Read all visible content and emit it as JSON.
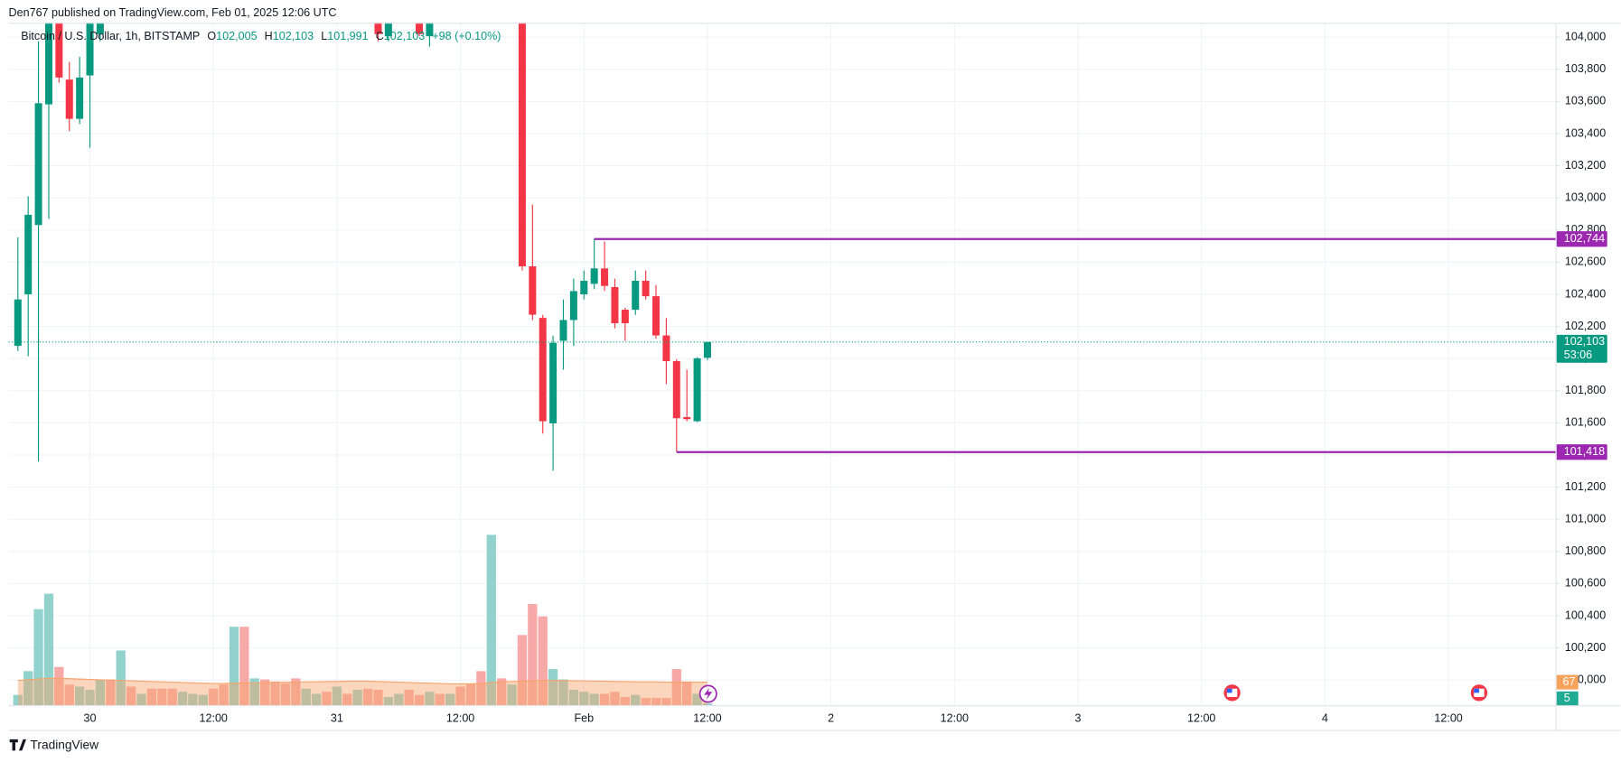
{
  "header": "Den767 published on TradingView.com, Feb 01, 2025 12:06 UTC",
  "footer": "TradingView",
  "chart_data": {
    "type": "candlestick",
    "legend": {
      "symbol": "Bitcoin / U.S. Dollar, 1h, BITSTAMP",
      "fields": [
        {
          "key": "O",
          "value": "102,005"
        },
        {
          "key": "H",
          "value": "102,103"
        },
        {
          "key": "L",
          "value": "101,991"
        },
        {
          "key": "C",
          "value": "102,103"
        }
      ],
      "change": "+98 (+0.10%)"
    },
    "up_color": "#089981",
    "down_color": "#f23645",
    "x": [
      0,
      1,
      2,
      3,
      4,
      5,
      6,
      7,
      8,
      9,
      10,
      11,
      12,
      13,
      14,
      15,
      16,
      17,
      18,
      19,
      20,
      21,
      22,
      23,
      24,
      25,
      26,
      27,
      28,
      29,
      30,
      31,
      32,
      33,
      34,
      35,
      36,
      37,
      38,
      39,
      40,
      41,
      42,
      43,
      44,
      45,
      46,
      47,
      48,
      49,
      50,
      51,
      52,
      53,
      54,
      55,
      56,
      57,
      58,
      59,
      60,
      61,
      62,
      63,
      64,
      65,
      66,
      67
    ],
    "open": [
      102079,
      102400,
      102831,
      103582,
      104295,
      103736,
      103492,
      103762,
      104019,
      null,
      null,
      null,
      null,
      null,
      null,
      null,
      null,
      null,
      null,
      null,
      null,
      null,
      null,
      null,
      null,
      null,
      null,
      null,
      null,
      null,
      null,
      null,
      null,
      null,
      null,
      104295,
      104006,
      null,
      null,
      104295,
      104006,
      null,
      null,
      null,
      null,
      null,
      null,
      null,
      null,
      104359,
      102574,
      102253,
      101597,
      102111,
      102240,
      102400,
      102465,
      102561,
      102445,
      102304,
      102304,
      102484,
      102388,
      102144,
      101984,
      101636,
      101610,
      102005
    ],
    "high": [
      102754,
      103010,
      103974,
      104488,
      104424,
      103846,
      103878,
      104231,
      104424,
      null,
      null,
      null,
      null,
      null,
      null,
      null,
      null,
      null,
      null,
      null,
      null,
      null,
      null,
      null,
      null,
      null,
      null,
      null,
      null,
      null,
      null,
      null,
      null,
      null,
      null,
      104359,
      104359,
      null,
      null,
      104359,
      104359,
      null,
      null,
      null,
      null,
      null,
      null,
      null,
      null,
      104424,
      102959,
      102272,
      102143,
      102368,
      102497,
      102548,
      102744,
      102730,
      102497,
      102317,
      102548,
      102548,
      102458,
      102252,
      101996,
      101931,
      102008,
      102103
    ],
    "low": [
      102047,
      102015,
      101360,
      102869,
      103717,
      103415,
      103460,
      103312,
      103974,
      null,
      null,
      null,
      null,
      null,
      null,
      null,
      null,
      null,
      null,
      null,
      null,
      null,
      null,
      null,
      null,
      null,
      null,
      null,
      null,
      null,
      null,
      null,
      null,
      null,
      null,
      103974,
      103974,
      null,
      null,
      104006,
      103942,
      null,
      null,
      null,
      null,
      null,
      null,
      null,
      null,
      102548,
      102240,
      101533,
      101302,
      101931,
      102079,
      102368,
      102432,
      102420,
      102188,
      102111,
      102272,
      102368,
      102124,
      101841,
      101418,
      101610,
      101604,
      101991
    ],
    "close": [
      102368,
      102895,
      103589,
      104359,
      103749,
      103492,
      103749,
      104103,
      104295,
      null,
      null,
      null,
      null,
      null,
      null,
      null,
      null,
      null,
      null,
      null,
      null,
      null,
      null,
      null,
      null,
      null,
      null,
      null,
      null,
      null,
      null,
      null,
      null,
      null,
      null,
      104019,
      104263,
      null,
      null,
      104019,
      104167,
      null,
      null,
      null,
      null,
      null,
      null,
      null,
      null,
      102574,
      102273,
      101610,
      102098,
      102240,
      102420,
      102484,
      102561,
      102452,
      102220,
      102220,
      102484,
      102388,
      102144,
      101984,
      101629,
      101623,
      102002,
      102103
    ],
    "volume": [
      30,
      99,
      279,
      324,
      111,
      60,
      54,
      45,
      75,
      75,
      159,
      54,
      33,
      48,
      48,
      48,
      39,
      33,
      30,
      48,
      60,
      228,
      228,
      78,
      75,
      69,
      63,
      78,
      48,
      33,
      39,
      54,
      33,
      45,
      48,
      45,
      24,
      33,
      45,
      30,
      39,
      33,
      33,
      54,
      63,
      99,
      495,
      78,
      60,
      204,
      294,
      258,
      105,
      75,
      45,
      39,
      33,
      33,
      39,
      24,
      30,
      21,
      21,
      21,
      105,
      69,
      33,
      5
    ],
    "volume_colors": [
      "#92d2cc",
      "#92d2cc",
      "#92d2cc",
      "#92d2cc",
      "#f7a9a7",
      "#f7a9a7",
      "#92d2cc",
      "#92d2cc",
      "#92d2cc",
      "#f7a9a7",
      "#92d2cc",
      "#f7a9a7",
      "#92d2cc",
      "#f7a9a7",
      "#f7a9a7",
      "#f7a9a7",
      "#92d2cc",
      "#92d2cc",
      "#92d2cc",
      "#f7a9a7",
      "#f7a9a7",
      "#92d2cc",
      "#f7a9a7",
      "#92d2cc",
      "#f7a9a7",
      "#f7a9a7",
      "#f7a9a7",
      "#f7a9a7",
      "#92d2cc",
      "#92d2cc",
      "#f7a9a7",
      "#92d2cc",
      "#f7a9a7",
      "#92d2cc",
      "#f7a9a7",
      "#f7a9a7",
      "#92d2cc",
      "#92d2cc",
      "#f7a9a7",
      "#f7a9a7",
      "#92d2cc",
      "#f7a9a7",
      "#92d2cc",
      "#f7a9a7",
      "#f7a9a7",
      "#f7a9a7",
      "#92d2cc",
      "#f7a9a7",
      "#92d2cc",
      "#f7a9a7",
      "#f7a9a7",
      "#f7a9a7",
      "#92d2cc",
      "#92d2cc",
      "#92d2cc",
      "#92d2cc",
      "#92d2cc",
      "#f7a9a7",
      "#f7a9a7",
      "#f7a9a7",
      "#92d2cc",
      "#f7a9a7",
      "#f7a9a7",
      "#f7a9a7",
      "#f7a9a7",
      "#f7a9a7",
      "#92d2cc",
      "#92d2cc"
    ],
    "volume_ma": [
      72,
      74,
      76,
      78,
      78,
      77,
      76,
      75,
      74,
      73,
      72,
      71,
      70,
      69,
      68,
      67,
      66,
      65,
      64,
      63,
      63,
      64,
      65,
      65,
      66,
      66,
      67,
      67,
      68,
      68,
      69,
      69,
      70,
      70,
      70,
      69,
      68,
      67,
      66,
      65,
      64,
      63,
      62,
      62,
      62,
      63,
      66,
      68,
      69,
      70,
      71,
      72,
      72,
      72,
      71,
      71,
      70,
      70,
      69,
      69,
      68,
      68,
      68,
      67,
      67,
      67,
      67,
      67
    ],
    "volume_ma_color": "#f7a36a",
    "hlines": [
      {
        "value": 102744,
        "label": "102,744"
      },
      {
        "value": 101418,
        "label": "101,418"
      }
    ],
    "hline_color": "#9c27b0",
    "last_price": {
      "value": 102103,
      "label": "102,103",
      "countdown": "53:06"
    },
    "xlim": [
      -0.9,
      149.4
    ],
    "xticks": [
      {
        "value": 7,
        "label": "30"
      },
      {
        "value": 19,
        "label": "12:00"
      },
      {
        "value": 31,
        "label": "31"
      },
      {
        "value": 43,
        "label": "12:00"
      },
      {
        "value": 55,
        "label": "Feb"
      },
      {
        "value": 67,
        "label": "12:00"
      },
      {
        "value": 79,
        "label": "2"
      },
      {
        "value": 91,
        "label": "12:00"
      },
      {
        "value": 103,
        "label": "3"
      },
      {
        "value": 115,
        "label": "12:00"
      },
      {
        "value": 127,
        "label": "4"
      },
      {
        "value": 139,
        "label": "12:00"
      }
    ],
    "ylim": [
      99843,
      104090
    ],
    "yticks": [
      {
        "value": 104000,
        "label": "104,000"
      },
      {
        "value": 103800,
        "label": "103,800"
      },
      {
        "value": 103600,
        "label": "103,600"
      },
      {
        "value": 103400,
        "label": "103,400"
      },
      {
        "value": 103200,
        "label": "103,200"
      },
      {
        "value": 103000,
        "label": "103,000"
      },
      {
        "value": 102800,
        "label": "102,800"
      },
      {
        "value": 102600,
        "label": "102,600"
      },
      {
        "value": 102400,
        "label": "102,400"
      },
      {
        "value": 102200,
        "label": "102,200"
      },
      {
        "value": 102000,
        "label": "102,000"
      },
      {
        "value": 101800,
        "label": "101,800"
      },
      {
        "value": 101600,
        "label": "101,600"
      },
      {
        "value": 101400,
        "label": "101,400"
      },
      {
        "value": 101200,
        "label": "101,200"
      },
      {
        "value": 101000,
        "label": "101,000"
      },
      {
        "value": 100800,
        "label": "100,800"
      },
      {
        "value": 100600,
        "label": "100,600"
      },
      {
        "value": 100400,
        "label": "100,400"
      },
      {
        "value": 100200,
        "label": "100,200"
      },
      {
        "value": 100000,
        "label": "100,000"
      }
    ],
    "y2lim": [
      0,
      1983
    ],
    "grid": true
  }
}
